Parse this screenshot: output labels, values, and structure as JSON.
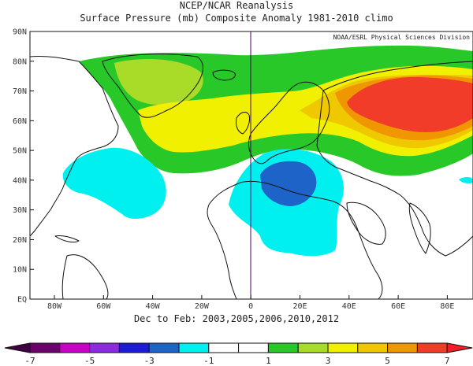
{
  "title": "NCEP/NCAR Reanalysis",
  "subtitle": "Surface Pressure (mb) Composite Anomaly 1981-2010 climo",
  "credit": "NOAA/ESRL Physical Sciences Division",
  "period_label": "Dec to Feb: 2003,2005,2006,2010,2012",
  "lat_labels": [
    "90N",
    "80N",
    "70N",
    "60N",
    "50N",
    "40N",
    "30N",
    "20N",
    "10N",
    "EQ"
  ],
  "lon_labels": [
    "80W",
    "60W",
    "40W",
    "20W",
    "0",
    "20E",
    "40E",
    "60E",
    "80E"
  ],
  "colorbar": {
    "labels": [
      "-7",
      "-5",
      "-3",
      "-1",
      "1",
      "3",
      "5",
      "7"
    ],
    "colors": [
      "#6a006a",
      "#c800c8",
      "#8a2be2",
      "#1c1cd8",
      "#1e64c8",
      "#00f0f0",
      "#ffffff",
      "#ffffff",
      "#28c828",
      "#a8dc28",
      "#f0f000",
      "#f0c800",
      "#f09600",
      "#f03c28"
    ],
    "under_color": "#3d0040",
    "over_color": "#f01e28"
  },
  "palette": {
    "pos_1_2": "#28c828",
    "pos_2_3": "#a8dc28",
    "pos_3_4": "#f0f000",
    "pos_4_5": "#f0c800",
    "pos_5_6": "#f09600",
    "pos_6_7": "#f03c28",
    "neg_1_2": "#00f0f0",
    "neg_2_3": "#1e64c8"
  }
}
